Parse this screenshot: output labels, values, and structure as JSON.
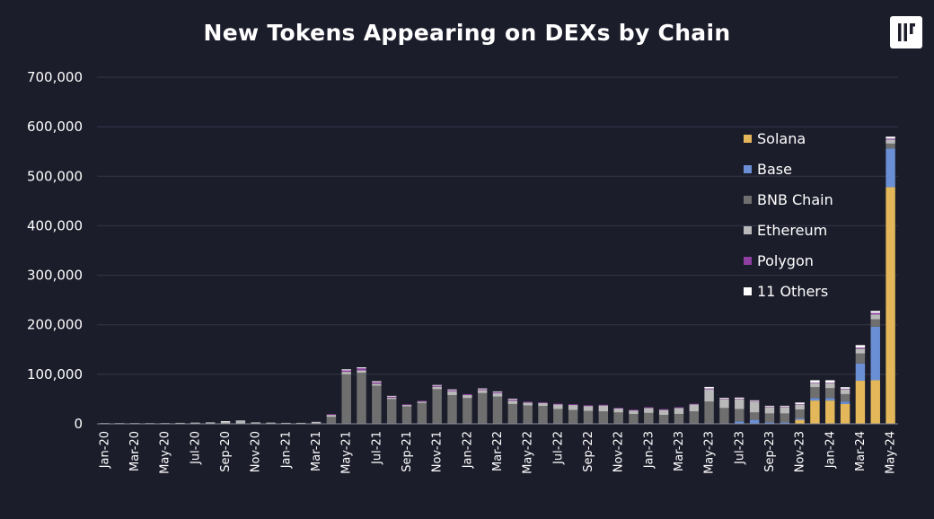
{
  "title": "New Tokens Appearing on DEXs by Chain",
  "logo": {
    "icon": "pantera-logo-icon"
  },
  "chart_data": {
    "type": "bar",
    "stacked": true,
    "title": "New Tokens Appearing on DEXs by Chain",
    "xlabel": "",
    "ylabel": "",
    "ylim": [
      0,
      700000
    ],
    "yticks": [
      "0",
      "100,000",
      "200,000",
      "300,000",
      "400,000",
      "500,000",
      "600,000",
      "700,000"
    ],
    "grid": true,
    "legend_position": "right",
    "categories": [
      "Jan-20",
      "Feb-20",
      "Mar-20",
      "Apr-20",
      "May-20",
      "Jun-20",
      "Jul-20",
      "Aug-20",
      "Sep-20",
      "Oct-20",
      "Nov-20",
      "Dec-20",
      "Jan-21",
      "Feb-21",
      "Mar-21",
      "Apr-21",
      "May-21",
      "Jun-21",
      "Jul-21",
      "Aug-21",
      "Sep-21",
      "Oct-21",
      "Nov-21",
      "Dec-21",
      "Jan-22",
      "Feb-22",
      "Mar-22",
      "Apr-22",
      "May-22",
      "Jun-22",
      "Jul-22",
      "Aug-22",
      "Sep-22",
      "Oct-22",
      "Nov-22",
      "Dec-22",
      "Jan-23",
      "Feb-23",
      "Mar-23",
      "Apr-23",
      "May-23",
      "Jun-23",
      "Jul-23",
      "Aug-23",
      "Sep-23",
      "Oct-23",
      "Nov-23",
      "Dec-23",
      "Jan-24",
      "Feb-24",
      "Mar-24",
      "Apr-24",
      "May-24"
    ],
    "x_tick_labels": [
      "Jan-20",
      "",
      "Mar-20",
      "",
      "May-20",
      "",
      "Jul-20",
      "",
      "Sep-20",
      "",
      "Nov-20",
      "",
      "Jan-21",
      "",
      "Mar-21",
      "",
      "May-21",
      "",
      "Jul-21",
      "",
      "Sep-21",
      "",
      "Nov-21",
      "",
      "Jan-22",
      "",
      "Mar-22",
      "",
      "May-22",
      "",
      "Jul-22",
      "",
      "Sep-22",
      "",
      "Nov-22",
      "",
      "Jan-23",
      "",
      "Mar-23",
      "",
      "May-23",
      "",
      "Jul-23",
      "",
      "Sep-23",
      "",
      "Nov-23",
      "",
      "Jan-24",
      "",
      "Mar-24",
      "",
      "May-24"
    ],
    "series": [
      {
        "name": "Solana",
        "color": "#e4b85a",
        "values": [
          0,
          0,
          0,
          0,
          0,
          0,
          0,
          0,
          0,
          0,
          0,
          0,
          0,
          0,
          0,
          0,
          0,
          0,
          0,
          0,
          0,
          0,
          0,
          0,
          0,
          0,
          0,
          0,
          0,
          0,
          0,
          0,
          0,
          0,
          0,
          0,
          0,
          0,
          0,
          0,
          0,
          0,
          0,
          0,
          0,
          0,
          8000,
          47000,
          47000,
          40000,
          87000,
          88000,
          478000
        ]
      },
      {
        "name": "Base",
        "color": "#6b8fd4",
        "values": [
          0,
          0,
          0,
          0,
          0,
          0,
          0,
          0,
          0,
          0,
          0,
          0,
          0,
          0,
          0,
          0,
          0,
          0,
          0,
          0,
          0,
          0,
          0,
          0,
          0,
          0,
          0,
          0,
          0,
          0,
          0,
          0,
          0,
          0,
          0,
          0,
          0,
          0,
          0,
          0,
          0,
          0,
          5000,
          8000,
          3000,
          3000,
          3000,
          5000,
          5000,
          5000,
          35000,
          108000,
          78000
        ]
      },
      {
        "name": "BNB Chain",
        "color": "#6f6f6f",
        "values": [
          0,
          0,
          0,
          0,
          0,
          0,
          0,
          0,
          0,
          0,
          0,
          0,
          0,
          0,
          1000,
          14000,
          100000,
          103000,
          77000,
          50000,
          35000,
          42000,
          70000,
          58000,
          52000,
          62000,
          55000,
          40000,
          37000,
          36000,
          30000,
          28000,
          26000,
          25000,
          23000,
          20000,
          22000,
          18000,
          20000,
          25000,
          45000,
          32000,
          25000,
          15000,
          18000,
          18000,
          18000,
          22000,
          20000,
          15000,
          20000,
          15000,
          10000
        ]
      },
      {
        "name": "Ethereum",
        "color": "#b9b9b9",
        "values": [
          1000,
          1000,
          1000,
          1000,
          1500,
          2000,
          2500,
          3000,
          4000,
          5000,
          3000,
          2500,
          2000,
          2000,
          3000,
          4000,
          5000,
          5000,
          4000,
          3000,
          3000,
          3000,
          5000,
          8000,
          6000,
          6000,
          7000,
          7000,
          6000,
          6000,
          9000,
          10000,
          10000,
          12000,
          8000,
          7000,
          10000,
          10000,
          12000,
          14000,
          25000,
          18000,
          20000,
          22000,
          13000,
          13000,
          10000,
          8000,
          10000,
          10000,
          10000,
          10000,
          8000
        ]
      },
      {
        "name": "Polygon",
        "color": "#8e3fa0",
        "values": [
          0,
          0,
          0,
          0,
          0,
          0,
          0,
          0,
          0,
          0,
          0,
          0,
          0,
          0,
          0,
          1000,
          3000,
          4000,
          3000,
          2000,
          1000,
          1000,
          2000,
          2000,
          2000,
          2000,
          2000,
          2000,
          1500,
          1500,
          1500,
          1500,
          1500,
          1500,
          1000,
          1000,
          1000,
          1000,
          1000,
          1000,
          1500,
          1000,
          1000,
          1000,
          1000,
          1000,
          1000,
          1000,
          1000,
          1000,
          2000,
          3000,
          2000
        ]
      },
      {
        "name": "11 Others",
        "color": "#ffffff",
        "values": [
          0,
          0,
          0,
          0,
          0,
          0,
          0,
          0,
          500,
          500,
          0,
          0,
          0,
          0,
          0,
          0,
          2000,
          2000,
          2000,
          1000,
          0,
          0,
          1000,
          1000,
          0,
          1000,
          1000,
          1000,
          0,
          0,
          0,
          0,
          0,
          0,
          0,
          0,
          0,
          0,
          0,
          0,
          3000,
          1000,
          2000,
          1000,
          1000,
          1000,
          3000,
          5000,
          5000,
          3000,
          5000,
          4000,
          4000
        ]
      }
    ]
  }
}
